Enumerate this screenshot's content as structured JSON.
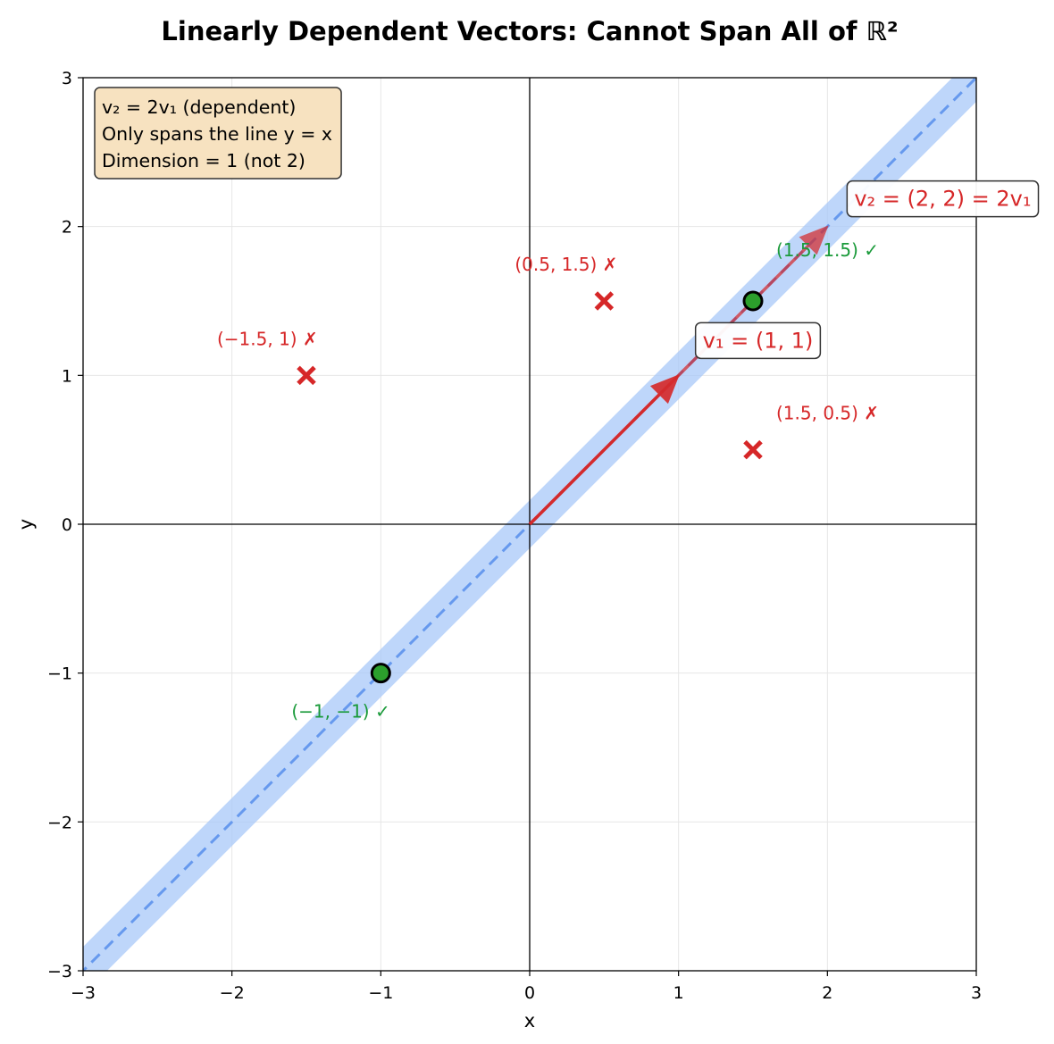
{
  "chart_data": {
    "type": "scatter",
    "title": "Linearly Dependent Vectors: Cannot Span All of ℝ²",
    "xlabel": "x",
    "ylabel": "y",
    "xlim": [
      -3,
      3
    ],
    "ylim": [
      -3,
      3
    ],
    "x_ticks": [
      {
        "value": -3,
        "label": "−3"
      },
      {
        "value": -2,
        "label": "−2"
      },
      {
        "value": -1,
        "label": "−1"
      },
      {
        "value": 0,
        "label": "0"
      },
      {
        "value": 1,
        "label": "1"
      },
      {
        "value": 2,
        "label": "2"
      },
      {
        "value": 3,
        "label": "3"
      }
    ],
    "y_ticks": [
      {
        "value": -3,
        "label": "−3"
      },
      {
        "value": -2,
        "label": "−2"
      },
      {
        "value": -1,
        "label": "−1"
      },
      {
        "value": 0,
        "label": "0"
      },
      {
        "value": 1,
        "label": "1"
      },
      {
        "value": 2,
        "label": "2"
      },
      {
        "value": 3,
        "label": "3"
      }
    ],
    "grid": true,
    "span_line": {
      "equation": "y = x",
      "style": "dashed",
      "band": true
    },
    "vectors": [
      {
        "id": "v1",
        "x": 1,
        "y": 1,
        "label": "v₁ = (1, 1)"
      },
      {
        "id": "v2",
        "x": 2,
        "y": 2,
        "label": "v₂ = (2, 2) = 2v₁"
      }
    ],
    "in_span_points": [
      {
        "x": 1.5,
        "y": 1.5,
        "label": "(1.5, 1.5) ✓"
      },
      {
        "x": -1,
        "y": -1,
        "label": "(−1, −1) ✓"
      }
    ],
    "not_in_span_points": [
      {
        "x": 0.5,
        "y": 1.5,
        "label": "(0.5, 1.5) ✗"
      },
      {
        "x": -1.5,
        "y": 1,
        "label": "(−1.5, 1) ✗"
      },
      {
        "x": 1.5,
        "y": 0.5,
        "label": "(1.5, 0.5) ✗"
      }
    ],
    "info_box": {
      "lines": [
        "v₂ = 2v₁ (dependent)",
        "Only spans the line y = x",
        "Dimension = 1 (not 2)"
      ],
      "placement": "top-left"
    }
  },
  "colors": {
    "vector": "#d62728",
    "in_span": "#2ca02c",
    "not_in_span": "#d62728",
    "in_span_label": "#1a9a3a",
    "span_band": "#a8c8f8",
    "span_line": "#6699ee",
    "info_box_bg": "#f7e2c0",
    "grid": "#e6e6e6"
  }
}
